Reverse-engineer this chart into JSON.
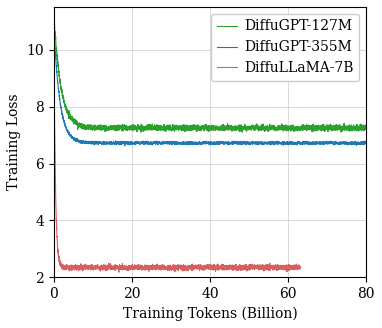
{
  "title": "",
  "xlabel": "Training Tokens (Billion)",
  "ylabel": "Training Loss",
  "xlim": [
    0,
    80
  ],
  "ylim": [
    2,
    11.5
  ],
  "yticks": [
    2,
    4,
    6,
    8,
    10
  ],
  "xticks": [
    0,
    20,
    40,
    60,
    80
  ],
  "lines": [
    {
      "label": "DiffuGPT-127M",
      "color": "#2ca02c",
      "start_loss": 11.2,
      "end_loss": 7.25,
      "plateau_loss": 7.25,
      "noise": 0.1,
      "decay": 0.55,
      "x_max": 80
    },
    {
      "label": "DiffuGPT-355M",
      "color": "#1f77b4",
      "start_loss": 10.8,
      "end_loss": 6.72,
      "plateau_loss": 6.72,
      "noise": 0.05,
      "decay": 0.65,
      "x_max": 80
    },
    {
      "label": "DiffuLLaMA-7B",
      "color": "#d65f5f",
      "start_loss": 10.5,
      "end_loss": 2.35,
      "plateau_loss": 2.35,
      "noise": 0.09,
      "decay": 2.5,
      "x_max": 63
    }
  ],
  "legend_loc": "upper right",
  "grid": true,
  "linewidth": 0.8,
  "figsize": [
    3.82,
    3.28
  ],
  "dpi": 100,
  "font_family": "serif",
  "font_size": 10,
  "legend_fontsize": 10
}
